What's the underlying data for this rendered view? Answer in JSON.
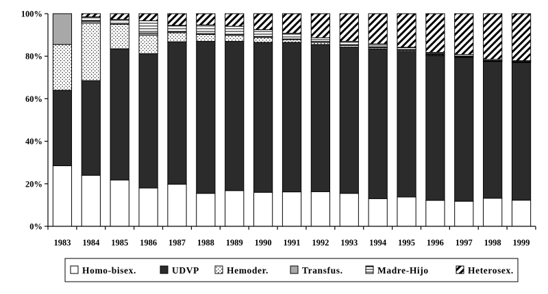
{
  "chart_data": {
    "type": "bar",
    "stacked": true,
    "percent": true,
    "categories": [
      "1983",
      "1984",
      "1985",
      "1986",
      "1987",
      "1988",
      "1989",
      "1990",
      "1991",
      "1992",
      "1993",
      "1994",
      "1995",
      "1996",
      "1997",
      "1998",
      "1999"
    ],
    "ylim": [
      0,
      100
    ],
    "yticks": [
      "0%",
      "20%",
      "40%",
      "60%",
      "80%",
      "100%"
    ],
    "grid": false,
    "legend_position": "bottom",
    "series": [
      {
        "name": "Homo-bisex.",
        "pattern": "solid-white",
        "values": [
          28.5,
          24,
          21.8,
          18,
          19.8,
          15.5,
          16.8,
          16,
          16.2,
          16.3,
          15.5,
          13,
          13.8,
          12.2,
          11.8,
          13.2,
          12.3
        ]
      },
      {
        "name": "UDVP",
        "pattern": "solid-dark",
        "values": [
          35.5,
          44.5,
          61.7,
          63.2,
          67,
          71.5,
          70.2,
          70.5,
          70.3,
          69.2,
          68.8,
          70.5,
          68.5,
          68.1,
          67.7,
          64.3,
          64.7
        ]
      },
      {
        "name": "Hemoder.",
        "pattern": "dots",
        "values": [
          21.5,
          27,
          11.5,
          8.7,
          4.2,
          3.2,
          2.8,
          2.3,
          1.3,
          1,
          0.8,
          0.6,
          0.5,
          0.4,
          0.3,
          0.3,
          0.3
        ]
      },
      {
        "name": "Transfus.",
        "pattern": "solid-gray",
        "values": [
          14.5,
          1,
          0.5,
          1,
          0.5,
          0.5,
          0.5,
          0.5,
          0.3,
          0.4,
          0.3,
          0.3,
          0.3,
          0.3,
          0.2,
          0.2,
          0.2
        ]
      },
      {
        "name": "Madre-Hijo",
        "pattern": "horizontal-lines",
        "values": [
          0,
          2,
          1.8,
          5.8,
          3,
          4,
          3.8,
          3.2,
          2.7,
          1.8,
          1.6,
          1.4,
          1.1,
          0.8,
          0.8,
          0.5,
          0.4
        ]
      },
      {
        "name": "Heterosex.",
        "pattern": "diagonal-hatch",
        "values": [
          0,
          1.5,
          2.7,
          3.3,
          5.5,
          5.3,
          5.9,
          7.5,
          9.2,
          11.3,
          13,
          14.2,
          15.8,
          18.2,
          19.2,
          21.5,
          22.1
        ]
      }
    ],
    "colors": {
      "white": "#ffffff",
      "dark": "#2b2b2b",
      "gray": "#a8a8a8",
      "outline": "#000000"
    }
  }
}
